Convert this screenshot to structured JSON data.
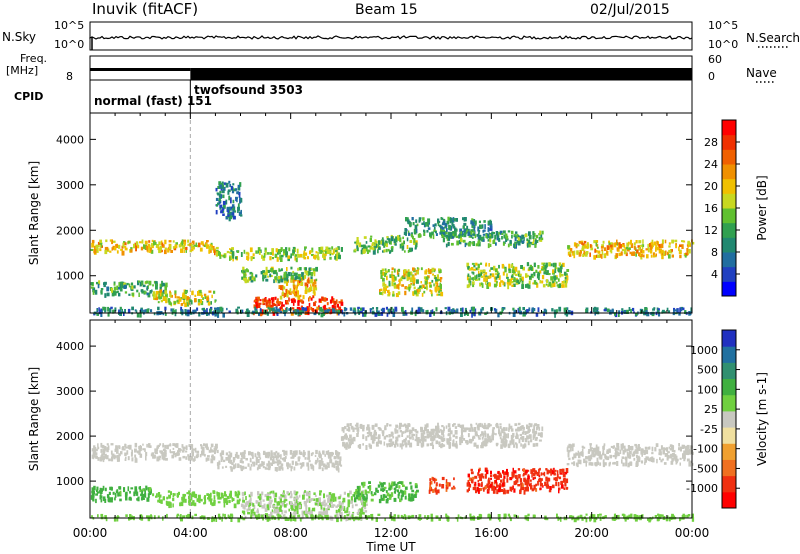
{
  "header": {
    "station": "Inuvik (fitACF)",
    "beam": "Beam 15",
    "date": "02/Jul/2015"
  },
  "top_panels": {
    "nsky": {
      "label": "N.Sky",
      "tick_top": "10^5",
      "tick_bottom": "10^0"
    },
    "nsearch": {
      "label": "N.Search",
      "tick_top": "10^5",
      "tick_bottom": "10^0"
    },
    "freq": {
      "label_line1": "Freq.",
      "label_line2": "[MHz]",
      "tick_top": "",
      "tick_bottom": "8"
    },
    "nave": {
      "label": "Nave",
      "tick_top": "60",
      "tick_bottom": "0"
    },
    "cpid": {
      "label": "CPID",
      "segments": [
        {
          "name": "normal (fast) 151",
          "start": "00:00",
          "end": "04:00"
        },
        {
          "name": "twofsound 3503",
          "start": "04:00",
          "end": "24:00"
        }
      ]
    }
  },
  "chart_data": [
    {
      "type": "heatmap",
      "title": "",
      "xlabel": "Time UT",
      "ylabel": "Slant Range [km]",
      "x_ticks": [
        "00:00",
        "04:00",
        "08:00",
        "12:00",
        "16:00",
        "20:00",
        "00:00"
      ],
      "x_range_hours": [
        0,
        24
      ],
      "y_ticks": [
        1000,
        2000,
        3000,
        4000
      ],
      "ylim": [
        180,
        4580
      ],
      "colorbar": {
        "label": "Power [dB]",
        "ticks": [
          4,
          8,
          12,
          16,
          20,
          24,
          28
        ],
        "range": [
          0,
          32
        ],
        "colors": [
          "#0000ff",
          "#2040c0",
          "#206ea0",
          "#208870",
          "#30a050",
          "#60c030",
          "#c8d820",
          "#f0c000",
          "#f09000",
          "#f06000",
          "#f03000",
          "#ff0000"
        ]
      },
      "regions": [
        {
          "t": [
            0.0,
            5.0
          ],
          "r": [
            1550,
            1800
          ],
          "value": 20
        },
        {
          "t": [
            0.0,
            3.0
          ],
          "r": [
            600,
            900
          ],
          "value": 12
        },
        {
          "t": [
            2.5,
            5.0
          ],
          "r": [
            400,
            700
          ],
          "value": 18
        },
        {
          "t": [
            5.0,
            10.0
          ],
          "r": [
            1400,
            1650
          ],
          "value": 16
        },
        {
          "t": [
            5.0,
            6.0
          ],
          "r": [
            2300,
            3100
          ],
          "value": 8
        },
        {
          "t": [
            6.5,
            10.0
          ],
          "r": [
            200,
            550
          ],
          "value": 28
        },
        {
          "t": [
            7.5,
            9.0
          ],
          "r": [
            550,
            1000
          ],
          "value": 22
        },
        {
          "t": [
            6.0,
            9.0
          ],
          "r": [
            900,
            1200
          ],
          "value": 14
        },
        {
          "t": [
            10.5,
            13.0
          ],
          "r": [
            1550,
            1900
          ],
          "value": 14
        },
        {
          "t": [
            11.5,
            14.0
          ],
          "r": [
            600,
            1200
          ],
          "value": 18
        },
        {
          "t": [
            12.5,
            16.0
          ],
          "r": [
            1900,
            2300
          ],
          "value": 10
        },
        {
          "t": [
            14.0,
            18.0
          ],
          "r": [
            1700,
            2000
          ],
          "value": 12
        },
        {
          "t": [
            15.0,
            19.0
          ],
          "r": [
            800,
            1300
          ],
          "value": 16
        },
        {
          "t": [
            19.0,
            24.0
          ],
          "r": [
            1450,
            1800
          ],
          "value": 20
        },
        {
          "t": [
            0.0,
            24.0
          ],
          "r": [
            180,
            320
          ],
          "value": 8
        }
      ]
    },
    {
      "type": "heatmap",
      "title": "",
      "xlabel": "Time UT",
      "ylabel": "Slant Range [km]",
      "x_ticks": [
        "00:00",
        "04:00",
        "08:00",
        "12:00",
        "16:00",
        "20:00",
        "00:00"
      ],
      "x_range_hours": [
        0,
        24
      ],
      "y_ticks": [
        1000,
        2000,
        3000,
        4000
      ],
      "ylim": [
        180,
        4580
      ],
      "colorbar": {
        "label": "Velocity [m s-1]",
        "ticks": [
          "1000",
          "500",
          "100",
          "25",
          "-25",
          "-100",
          "-500",
          "-1000"
        ],
        "colors": [
          "#2030c0",
          "#2070a0",
          "#309070",
          "#40b040",
          "#70d040",
          "#c8c8c0",
          "#f0e0a0",
          "#f0a030",
          "#f07020",
          "#f03010",
          "#ff0000"
        ]
      },
      "regions": [
        {
          "t": [
            0.0,
            5.0
          ],
          "r": [
            1500,
            1850
          ],
          "value": 0
        },
        {
          "t": [
            0.0,
            2.5
          ],
          "r": [
            600,
            900
          ],
          "value": 150
        },
        {
          "t": [
            2.5,
            6.0
          ],
          "r": [
            500,
            800
          ],
          "value": 70
        },
        {
          "t": [
            5.0,
            10.0
          ],
          "r": [
            1300,
            1700
          ],
          "value": 0
        },
        {
          "t": [
            6.0,
            11.0
          ],
          "r": [
            200,
            800
          ],
          "value": 20
        },
        {
          "t": [
            10.5,
            13.0
          ],
          "r": [
            600,
            1000
          ],
          "value": 120
        },
        {
          "t": [
            13.5,
            14.5
          ],
          "r": [
            800,
            1100
          ],
          "value": -300
        },
        {
          "t": [
            15.0,
            19.0
          ],
          "r": [
            800,
            1300
          ],
          "value": -400
        },
        {
          "t": [
            19.0,
            24.0
          ],
          "r": [
            1400,
            1850
          ],
          "value": 0
        },
        {
          "t": [
            10.0,
            18.0
          ],
          "r": [
            1800,
            2300
          ],
          "value": 0
        },
        {
          "t": [
            0.0,
            24.0
          ],
          "r": [
            180,
            280
          ],
          "value": 60
        }
      ]
    }
  ]
}
